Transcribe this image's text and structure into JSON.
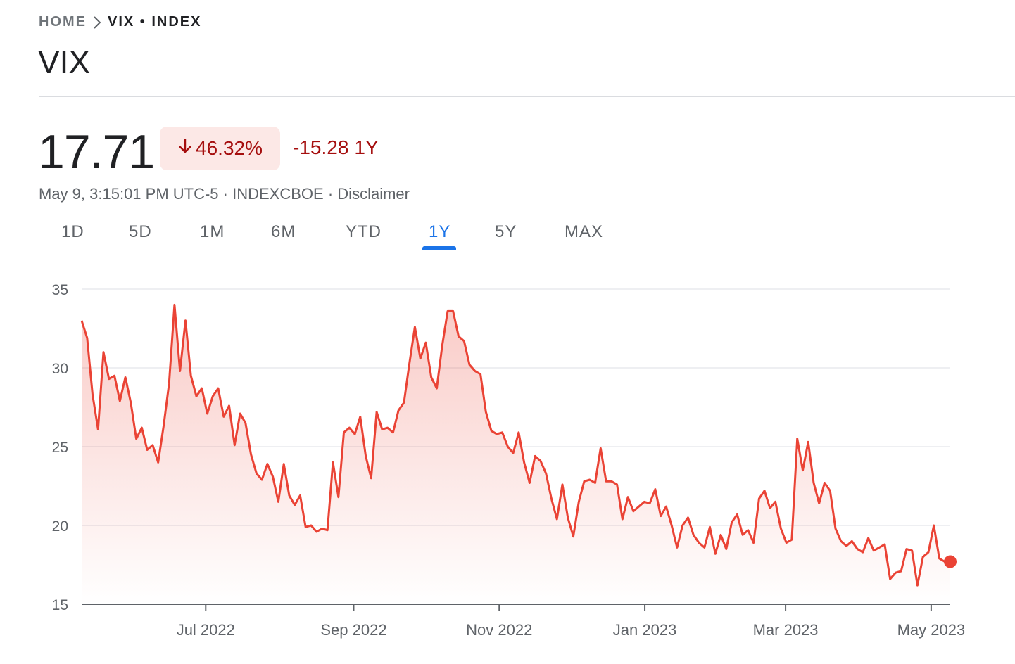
{
  "breadcrumb": {
    "home": "HOME",
    "current": "VIX • INDEX"
  },
  "title": "VIX",
  "quote": {
    "price": "17.71",
    "percent_change": "46.32%",
    "change": "-15.28",
    "period": "1Y",
    "direction": "down",
    "timestamp": "May 9, 3:15:01 PM UTC-5",
    "exchange": "INDEXCBOE",
    "disclaimer": "Disclaimer"
  },
  "range_tabs": [
    "1D",
    "5D",
    "1M",
    "6M",
    "YTD",
    "1Y",
    "5Y",
    "MAX"
  ],
  "active_range": "1Y",
  "colors": {
    "line": "#ea4335",
    "down_text": "#a50e0e",
    "badge_bg": "#fce8e6",
    "accent": "#1a73e8"
  },
  "icons": {
    "breadcrumb_separator": "chevron-right-icon",
    "change_arrow": "arrow-down-icon"
  },
  "chart_data": {
    "type": "area",
    "x_tick_labels": [
      "Jul 2022",
      "Sep 2022",
      "Nov 2022",
      "Jan 2023",
      "Mar 2023",
      "May 2023"
    ],
    "y_ticks": [
      15,
      20,
      25,
      30,
      35
    ],
    "ylim": [
      15,
      35
    ],
    "grid": true,
    "x_start": "2022-05-10",
    "x_end": "2023-05-09",
    "values": [
      33.0,
      31.9,
      28.3,
      26.1,
      31.0,
      29.3,
      29.5,
      27.9,
      29.4,
      27.8,
      25.5,
      26.2,
      24.8,
      25.1,
      24.0,
      26.3,
      29.0,
      34.0,
      29.8,
      33.0,
      29.5,
      28.2,
      28.7,
      27.1,
      28.2,
      28.7,
      26.9,
      27.6,
      25.1,
      27.1,
      26.5,
      24.5,
      23.3,
      22.9,
      23.9,
      23.1,
      21.5,
      23.9,
      21.9,
      21.3,
      21.9,
      19.9,
      20.0,
      19.6,
      19.8,
      19.7,
      24.0,
      21.8,
      25.9,
      26.2,
      25.8,
      26.9,
      24.4,
      23.0,
      27.2,
      26.1,
      26.2,
      25.9,
      27.3,
      27.8,
      30.3,
      32.6,
      30.6,
      31.6,
      29.4,
      28.7,
      31.4,
      33.6,
      33.6,
      32.0,
      31.7,
      30.2,
      29.8,
      29.6,
      27.2,
      26.0,
      25.8,
      25.9,
      25.0,
      24.6,
      25.9,
      24.0,
      22.7,
      24.4,
      24.1,
      23.3,
      21.7,
      20.4,
      22.6,
      20.5,
      19.3,
      21.5,
      22.8,
      22.9,
      22.7,
      24.9,
      22.8,
      22.8,
      22.6,
      20.4,
      21.8,
      20.9,
      21.2,
      21.5,
      21.4,
      22.3,
      20.6,
      21.2,
      20.0,
      18.6,
      20.0,
      20.5,
      19.4,
      18.9,
      18.6,
      19.9,
      18.2,
      19.4,
      18.5,
      20.2,
      20.7,
      19.4,
      19.7,
      18.9,
      21.7,
      22.2,
      21.1,
      21.5,
      19.8,
      18.9,
      19.1,
      25.5,
      23.5,
      25.3,
      22.7,
      21.4,
      22.7,
      22.2,
      19.8,
      19.0,
      18.7,
      19.0,
      18.5,
      18.3,
      19.2,
      18.4,
      18.6,
      18.8,
      16.6,
      17.0,
      17.1,
      18.5,
      18.4,
      16.2,
      18.0,
      18.3,
      20.0,
      17.9,
      17.7,
      17.7
    ]
  }
}
